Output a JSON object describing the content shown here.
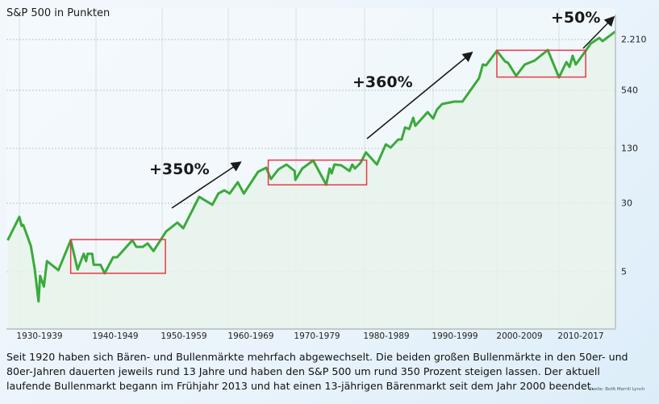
{
  "chart_data": {
    "type": "line",
    "title": "S&P 500 in Punkten",
    "y_scale": "log",
    "y_axis_position": "right",
    "yticks": [
      {
        "value": 2210,
        "label": "2.210"
      },
      {
        "value": 540,
        "label": "540"
      },
      {
        "value": 130,
        "label": "130"
      },
      {
        "value": 30,
        "label": "30"
      },
      {
        "value": 5,
        "label": "5"
      }
    ],
    "xtick_labels": [
      "1930-1939",
      "1940-1949",
      "1950-1959",
      "1960-1969",
      "1970-1979",
      "1980-1989",
      "1990-1999",
      "2000-2009",
      "2010-2017"
    ],
    "grid": true,
    "line_color": "#3aaa3a",
    "fill_color": "#e6f2e8",
    "highlight_color": "#e8394a",
    "points": [
      [
        1928.3,
        11.4
      ],
      [
        1930.0,
        21.0
      ],
      [
        1930.3,
        16.6
      ],
      [
        1930.5,
        17.0
      ],
      [
        1931.5,
        9.8
      ],
      [
        1932.0,
        5.4
      ],
      [
        1932.5,
        2.3
      ],
      [
        1932.7,
        4.5
      ],
      [
        1933.2,
        3.4
      ],
      [
        1933.6,
        6.6
      ],
      [
        1935.1,
        5.2
      ],
      [
        1936.7,
        11.4
      ],
      [
        1937.6,
        5.3
      ],
      [
        1938.4,
        8.0
      ],
      [
        1938.7,
        6.6
      ],
      [
        1938.9,
        8.0
      ],
      [
        1939.5,
        8.0
      ],
      [
        1939.7,
        6.0
      ],
      [
        1940.7,
        6.0
      ],
      [
        1941.3,
        4.8
      ],
      [
        1942.6,
        7.3
      ],
      [
        1943.2,
        7.3
      ],
      [
        1945.5,
        11.4
      ],
      [
        1946.1,
        9.6
      ],
      [
        1947.1,
        9.6
      ],
      [
        1947.8,
        10.5
      ],
      [
        1948.7,
        8.6
      ],
      [
        1950.6,
        14.3
      ],
      [
        1952.3,
        18.1
      ],
      [
        1953.2,
        15.6
      ],
      [
        1955.6,
        35.6
      ],
      [
        1957.6,
        28.8
      ],
      [
        1958.5,
        38.9
      ],
      [
        1959.4,
        42.4
      ],
      [
        1960.2,
        38.9
      ],
      [
        1961.4,
        52.6
      ],
      [
        1962.3,
        38.9
      ],
      [
        1964.4,
        69.5
      ],
      [
        1965.6,
        77.5
      ],
      [
        1966.3,
        57.3
      ],
      [
        1967.4,
        74.2
      ],
      [
        1968.6,
        84.5
      ],
      [
        1969.8,
        71.0
      ],
      [
        1969.9,
        56.0
      ],
      [
        1970.9,
        75.8
      ],
      [
        1972.5,
        94
      ],
      [
        1974.4,
        49.3
      ],
      [
        1974.9,
        75.8
      ],
      [
        1975.2,
        66.6
      ],
      [
        1975.6,
        84.5
      ],
      [
        1976.6,
        82.6
      ],
      [
        1977.8,
        71.0
      ],
      [
        1978.2,
        84.5
      ],
      [
        1978.6,
        75.8
      ],
      [
        1979.4,
        88.1
      ],
      [
        1980.2,
        116.7
      ],
      [
        1981.8,
        84.5
      ],
      [
        1983.1,
        143.5
      ],
      [
        1983.8,
        132.6
      ],
      [
        1984.9,
        161.6
      ],
      [
        1985.4,
        161.6
      ],
      [
        1985.9,
        217.4
      ],
      [
        1986.5,
        209
      ],
      [
        1987.1,
        275.7
      ],
      [
        1987.4,
        226
      ],
      [
        1989.2,
        316.6
      ],
      [
        1990.0,
        270
      ],
      [
        1990.6,
        336
      ],
      [
        1991.4,
        386
      ],
      [
        1993.3,
        409
      ],
      [
        1994.6,
        409
      ],
      [
        1997.2,
        755
      ],
      [
        1997.8,
        1104
      ],
      [
        1998.3,
        1080
      ],
      [
        2000.0,
        1615
      ],
      [
        2001.3,
        1208
      ],
      [
        2001.8,
        1155
      ],
      [
        2003.1,
        808
      ],
      [
        2004.5,
        1104
      ],
      [
        2006.1,
        1235
      ],
      [
        2008.2,
        1652
      ],
      [
        2010.0,
        772
      ],
      [
        2011.2,
        1181
      ],
      [
        2011.7,
        1032
      ],
      [
        2012.2,
        1411
      ],
      [
        2012.7,
        1104
      ],
      [
        2014.3,
        1615
      ],
      [
        2015.1,
        1975
      ],
      [
        2016.5,
        2311
      ],
      [
        2017.0,
        2113
      ],
      [
        2019.1,
        2764
      ]
    ],
    "highlight_boxes": [
      {
        "from": 1936.7,
        "to": 1950.5,
        "low": 4.8,
        "high": 11.6
      },
      {
        "from": 1965.9,
        "to": 1980.3,
        "low": 49,
        "high": 95
      },
      {
        "from": 2000.0,
        "to": 2014.3,
        "low": 780,
        "high": 1640
      }
    ],
    "annotations": [
      "+350%",
      "+360%",
      "+50%"
    ]
  },
  "caption": "Seit 1920 haben sich Bären- und Bullenmärkte mehrfach abgewechselt. Die beiden großen Bullenmärkte in den 50er- und 80er-Jahren dauerten jeweils rund 13 Jahre und haben den S&P 500 um rund 350 Prozent steigen lassen. Der aktuell laufende Bullenmarkt begann im Frühjahr 2013 und hat einen 13-jährigen Bärenmarkt seit dem Jahr 2000 beendet.",
  "source": "Quelle: BofA Merrill Lynch"
}
